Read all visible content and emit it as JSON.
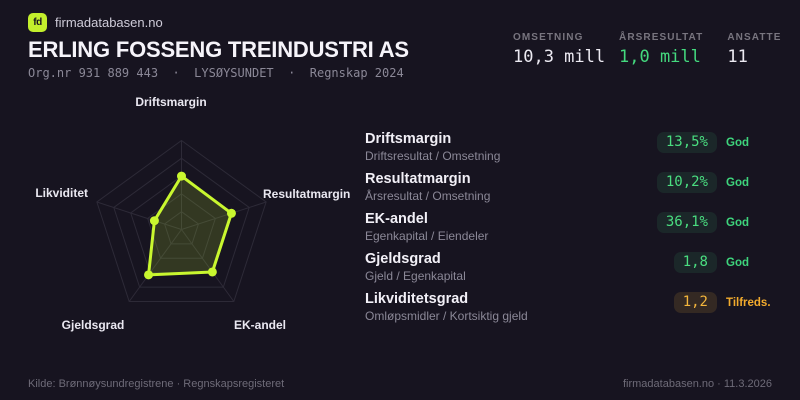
{
  "brand": {
    "logo": "fd",
    "name": "firmadatabasen.no"
  },
  "header": {
    "company": "ERLING FOSSENG TREINDUSTRI AS",
    "meta": "Org.nr 931 889 443  ·  LYSØYSUNDET  ·  Regnskap 2024"
  },
  "stats": [
    {
      "label": "OMSETNING",
      "value": "10,3 mill",
      "tone": "default"
    },
    {
      "label": "ÅRSRESULTAT",
      "value": "1,0 mill",
      "tone": "positive"
    },
    {
      "label": "ANSATTE",
      "value": "11",
      "tone": "default"
    }
  ],
  "metrics": [
    {
      "name": "Driftsmargin",
      "formula": "Driftsresultat / Omsetning",
      "value": "13,5%",
      "status": "God",
      "tone": "good"
    },
    {
      "name": "Resultatmargin",
      "formula": "Årsresultat / Omsetning",
      "value": "10,2%",
      "status": "God",
      "tone": "good"
    },
    {
      "name": "EK-andel",
      "formula": "Egenkapital / Eiendeler",
      "value": "36,1%",
      "status": "God",
      "tone": "good"
    },
    {
      "name": "Gjeldsgrad",
      "formula": "Gjeld / Egenkapital",
      "value": "1,8",
      "status": "God",
      "tone": "good"
    },
    {
      "name": "Likviditetsgrad",
      "formula": "Omløpsmidler / Kortsiktig gjeld",
      "value": "1,2",
      "status": "Tilfreds.",
      "tone": "warn"
    }
  ],
  "chart_data": {
    "type": "radar",
    "categories": [
      "Driftsmargin",
      "Resultatmargin",
      "EK-andel",
      "Gjeldsgrad",
      "Likviditet"
    ],
    "values": [
      0.6,
      0.59,
      0.59,
      0.63,
      0.32
    ],
    "displayed_metric_values": [
      "13,5%",
      "10,2%",
      "36,1%",
      "1,8",
      "1,2"
    ],
    "rings": [
      0.2,
      0.4,
      0.6,
      0.8,
      1.0
    ],
    "value_range": [
      0,
      1
    ],
    "stroke_color": "#c9f72f",
    "fill_color": "rgba(201,247,47,0.16)",
    "grid_color": "#2d2a37",
    "legend": "none"
  },
  "footer": {
    "source": "Kilde: Brønnøysundregistrene · Regnskapsregisteret",
    "attribution": "firmadatabasen.no · 11.3.2026"
  },
  "colors": {
    "background": "#171420",
    "accent": "#c3ef2c",
    "positive": "#44d97e",
    "warning": "#f4b63c"
  }
}
